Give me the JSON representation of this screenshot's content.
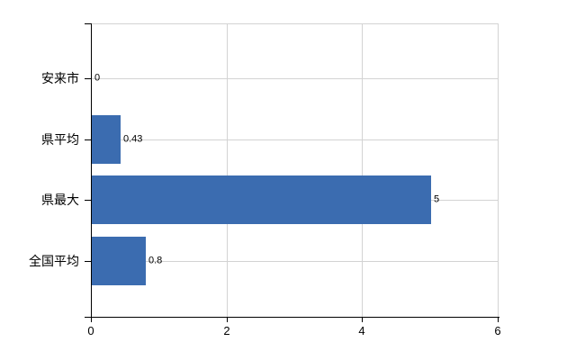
{
  "chart_data": {
    "type": "bar",
    "orientation": "horizontal",
    "title": "",
    "xlabel": "",
    "ylabel": "",
    "categories": [
      "安来市",
      "県平均",
      "県最大",
      "全国平均"
    ],
    "values": [
      0,
      0.43,
      5,
      0.8
    ],
    "value_labels": [
      "0",
      "0.43",
      "5",
      "0.8"
    ],
    "xlim": [
      0,
      6
    ],
    "xticks": [
      0,
      2,
      4,
      6
    ],
    "xtick_labels": [
      "0",
      "2",
      "4",
      "6"
    ],
    "grid": true,
    "legend": false,
    "bar_color": "#3b6cb0",
    "gridline_color": "#d3d3d3",
    "axis_color": "#000000",
    "text_color": "#000000",
    "background_color": "#ffffff"
  }
}
